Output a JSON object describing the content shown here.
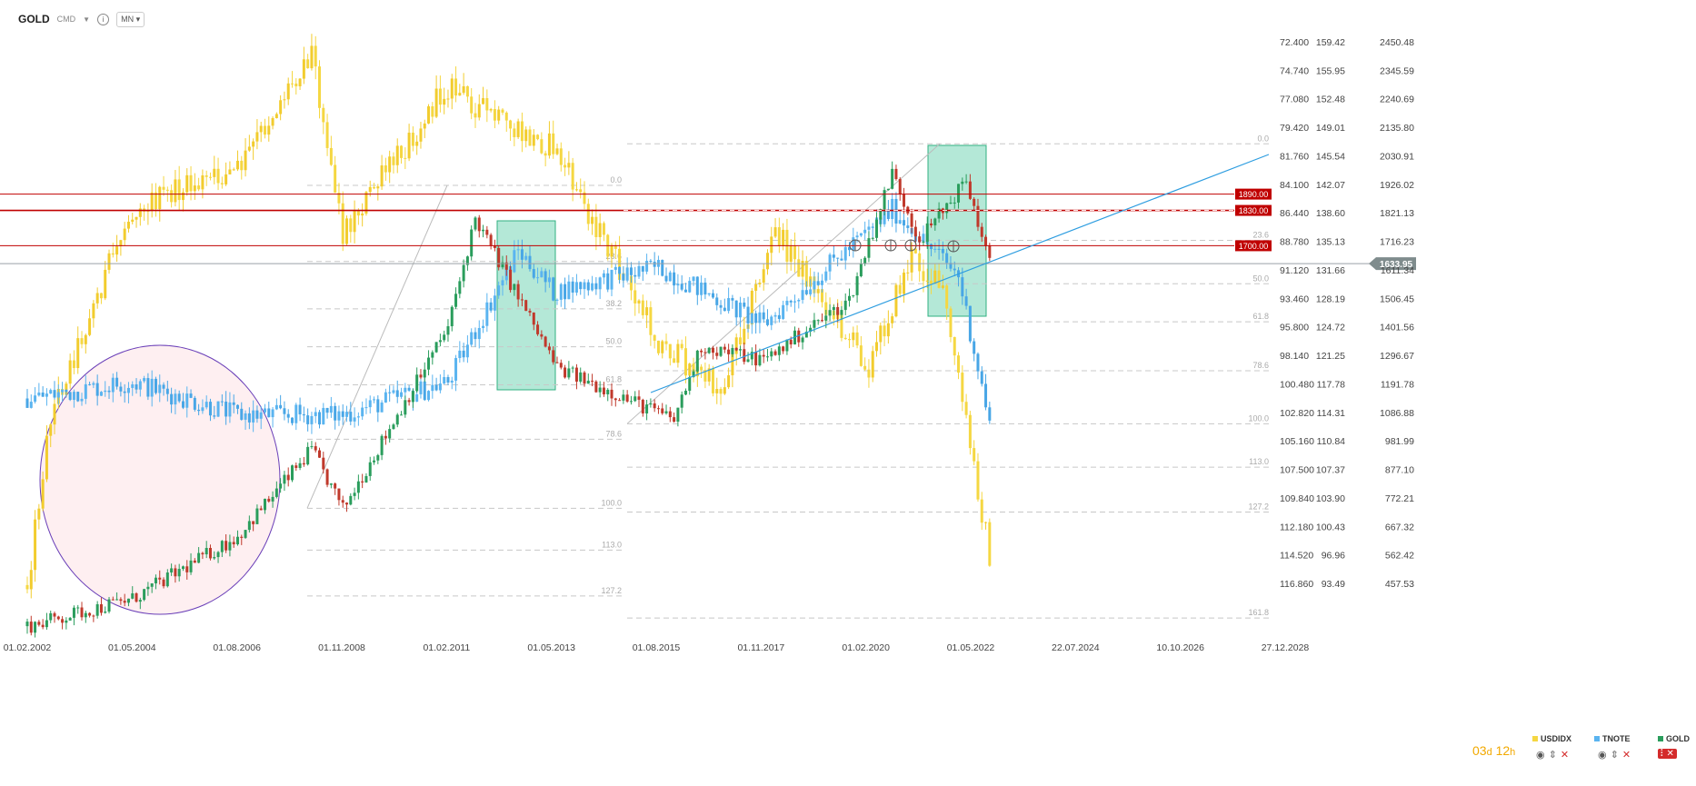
{
  "toolbar": {
    "symbol": "GOLD",
    "instrument_type": "CMD",
    "interval": "MN",
    "icons": [
      "chevron-down-icon",
      "info-icon",
      "chevron-down-icon"
    ]
  },
  "countdown": {
    "days": "03",
    "d": "d",
    "hours": "12",
    "h": "h"
  },
  "legend": {
    "items": [
      {
        "name": "USDIDX",
        "color": "#f5d742"
      },
      {
        "name": "TNOTE",
        "color": "#5ab4f0"
      },
      {
        "name": "GOLD",
        "color": "#2a9d5c"
      }
    ]
  },
  "chart_data": {
    "type": "candlestick",
    "x_ticks": [
      "01.02.2002",
      "01.05.2004",
      "01.08.2006",
      "01.11.2008",
      "01.02.2011",
      "01.05.2013",
      "01.08.2015",
      "01.11.2017",
      "01.02.2020",
      "01.05.2022",
      "22.07.2024",
      "10.10.2026",
      "27.12.2028"
    ],
    "axes": [
      {
        "series": "USDIDX",
        "inverted": true,
        "ticks": [
          "72.400",
          "74.740",
          "77.080",
          "79.420",
          "81.760",
          "84.100",
          "86.440",
          "88.780",
          "91.120",
          "93.460",
          "95.800",
          "98.140",
          "100.480",
          "102.820",
          "105.160",
          "107.500",
          "109.840",
          "112.180",
          "114.520",
          "116.860"
        ]
      },
      {
        "series": "TNOTE",
        "ticks": [
          "159.42",
          "155.95",
          "152.48",
          "149.01",
          "145.54",
          "142.07",
          "138.60",
          "135.13",
          "131.66",
          "128.19",
          "124.72",
          "121.25",
          "117.78",
          "114.31",
          "110.84",
          "107.37",
          "103.90",
          "100.43",
          "96.96",
          "93.49"
        ]
      },
      {
        "series": "GOLD",
        "ticks": [
          "2450.48",
          "2345.59",
          "2240.69",
          "2135.80",
          "2030.91",
          "1926.02",
          "1821.13",
          "1716.23",
          "1611.34",
          "1506.45",
          "1401.56",
          "1296.67",
          "1191.78",
          "1086.88",
          "981.99",
          "877.10",
          "772.21",
          "667.32",
          "562.42",
          "457.53"
        ],
        "range": [
          457.53,
          2450.48
        ]
      }
    ],
    "series": [
      {
        "name": "GOLD",
        "color_up": "#2a9d5c",
        "color_down": "#c0392b",
        "anchors": [
          [
            "01.02.2002",
            300
          ],
          [
            "01.05.2004",
            400
          ],
          [
            "01.08.2006",
            630
          ],
          [
            "01.03.2008",
            950
          ],
          [
            "01.11.2008",
            730
          ],
          [
            "01.02.2011",
            1400
          ],
          [
            "01.09.2011",
            1800
          ],
          [
            "01.06.2013",
            1250
          ],
          [
            "01.12.2015",
            1060
          ],
          [
            "01.07.2016",
            1330
          ],
          [
            "01.11.2017",
            1280
          ],
          [
            "01.09.2019",
            1500
          ],
          [
            "01.08.2020",
            1970
          ],
          [
            "01.03.2021",
            1720
          ],
          [
            "01.03.2022",
            1940
          ],
          [
            "01.09.2022",
            1633.95
          ]
        ]
      },
      {
        "name": "USDIDX",
        "color": "#f5d742",
        "anchors": [
          [
            "01.02.2002",
            117
          ],
          [
            "01.08.2002",
            103
          ],
          [
            "01.05.2004",
            86
          ],
          [
            "01.08.2006",
            83
          ],
          [
            "01.03.2008",
            73
          ],
          [
            "01.11.2008",
            88
          ],
          [
            "01.02.2011",
            76
          ],
          [
            "01.08.2012",
            80
          ],
          [
            "01.05.2013",
            81
          ],
          [
            "01.08.2015",
            97
          ],
          [
            "01.12.2016",
            101
          ],
          [
            "01.02.2018",
            88
          ],
          [
            "01.02.2020",
            99
          ],
          [
            "01.01.2021",
            90
          ],
          [
            "01.09.2021",
            93
          ],
          [
            "01.09.2022",
            114.5
          ]
        ]
      },
      {
        "name": "TNOTE",
        "color": "#5ab4f0",
        "anchors": [
          [
            "01.02.2002",
            116
          ],
          [
            "01.05.2004",
            118
          ],
          [
            "01.08.2006",
            114
          ],
          [
            "01.11.2008",
            114
          ],
          [
            "01.02.2011",
            118
          ],
          [
            "01.08.2012",
            134
          ],
          [
            "01.05.2013",
            129
          ],
          [
            "01.08.2015",
            132
          ],
          [
            "01.11.2017",
            125
          ],
          [
            "01.08.2020",
            139
          ],
          [
            "01.01.2022",
            131
          ],
          [
            "01.09.2022",
            113
          ]
        ]
      }
    ],
    "horizontal_levels": [
      {
        "label": "1890.00",
        "value": 1890,
        "color": "#c00000"
      },
      {
        "label": "1830.00",
        "value": 1830,
        "color": "#c00000"
      },
      {
        "label": "1700.00",
        "value": 1700,
        "color": "#c00000"
      }
    ],
    "current_price": {
      "label": "1633.95",
      "value": 1633.95
    },
    "fibonacci": [
      {
        "levels": [
          {
            "label": "0.0",
            "value": 1922
          },
          {
            "label": "23.6",
            "value": 1642
          },
          {
            "label": "38.2",
            "value": 1468
          },
          {
            "label": "50.0",
            "value": 1328
          },
          {
            "label": "61.8",
            "value": 1188
          },
          {
            "label": "78.6",
            "value": 988
          },
          {
            "label": "100.0",
            "value": 734
          },
          {
            "label": "113.0",
            "value": 580
          },
          {
            "label": "127.2",
            "value": 411
          }
        ]
      },
      {
        "levels": [
          {
            "label": "0.0",
            "value": 2075
          },
          {
            "label": "23.6",
            "value": 1720
          },
          {
            "label": "50.0",
            "value": 1560
          },
          {
            "label": "61.8",
            "value": 1420
          },
          {
            "label": "78.6",
            "value": 1240
          },
          {
            "label": "100.0",
            "value": 1045
          },
          {
            "label": "113.0",
            "value": 885
          },
          {
            "label": "127.2",
            "value": 720
          },
          {
            "label": "161.8",
            "value": 330
          }
        ]
      }
    ],
    "grid": false,
    "legend_position": "bottom-right"
  }
}
